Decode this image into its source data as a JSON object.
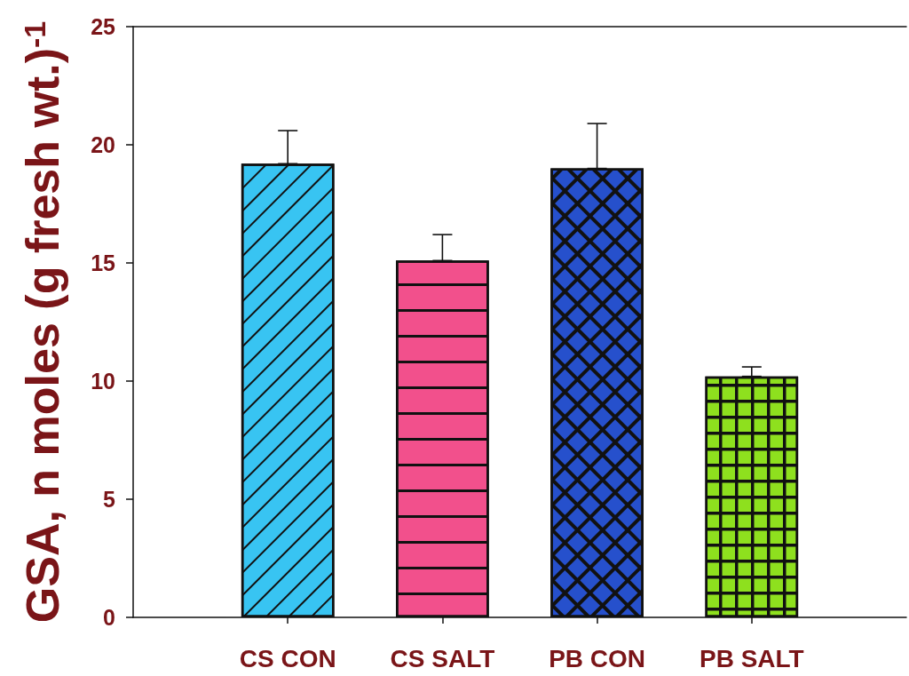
{
  "chart_data": {
    "type": "bar",
    "ylabel": "GSA, n moles (g fresh wt.)$^{-1}$",
    "categories": [
      "CS CON",
      "CS SALT",
      "PB CON",
      "PB SALT"
    ],
    "values": [
      19.2,
      15.1,
      19.0,
      10.2
    ],
    "colors": [
      "#38c4f2",
      "#f2508c",
      "#2650cc",
      "#8ee01e"
    ],
    "errors": [
      [
        19.2,
        20.6
      ],
      [
        15.1,
        16.2
      ],
      [
        19.0,
        20.9
      ],
      [
        10.2,
        10.6
      ]
    ],
    "ylim": [
      0,
      25
    ],
    "yticks": [
      0,
      5,
      10,
      15,
      20,
      25
    ]
  }
}
